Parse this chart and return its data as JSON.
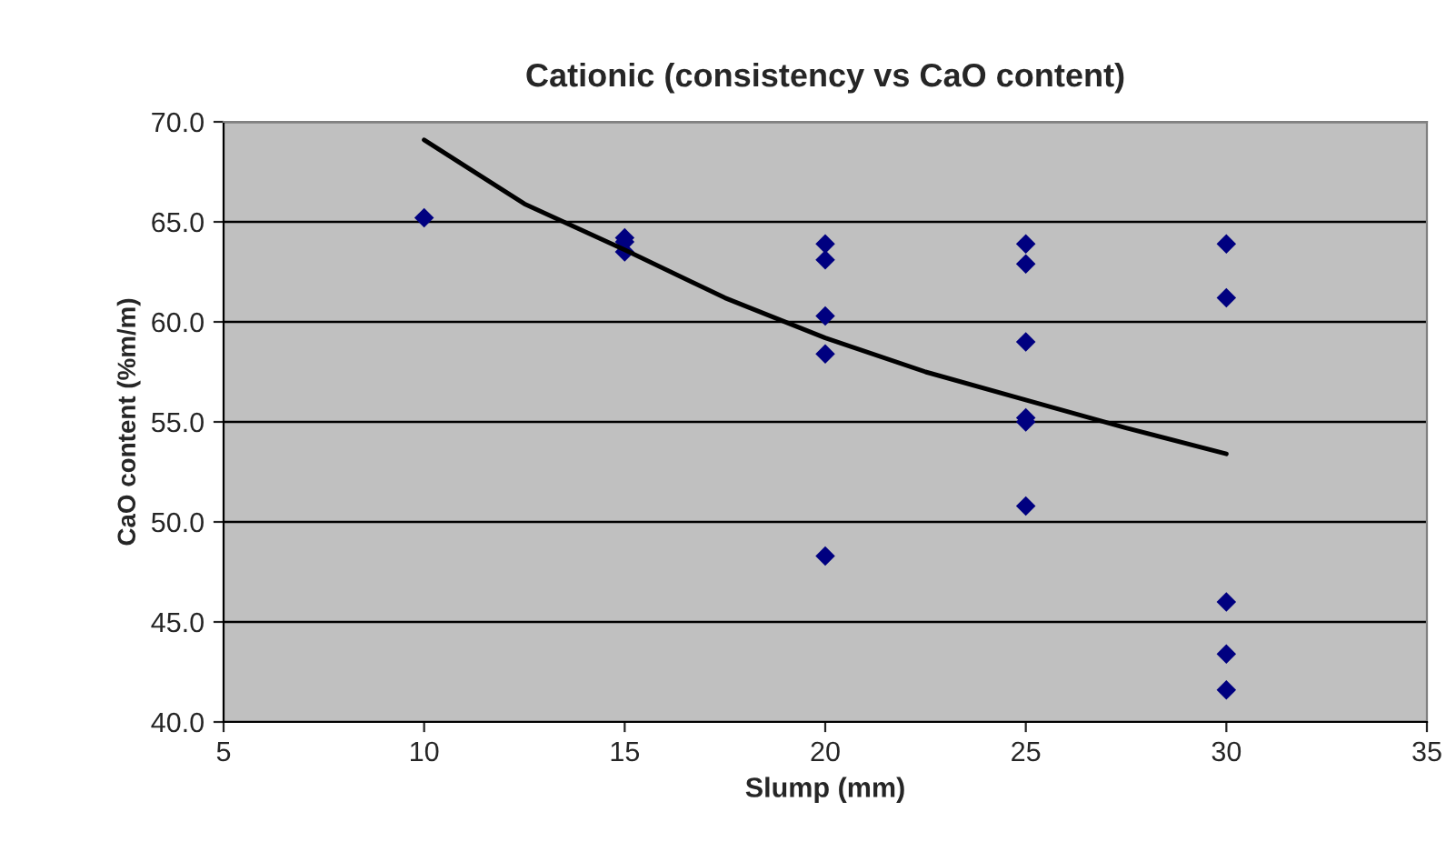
{
  "chart_data": {
    "type": "scatter",
    "title": "Cationic (consistency vs CaO content)",
    "xlabel": "Slump (mm)",
    "ylabel": "CaO content (%m/m)",
    "series": [
      {
        "color": "#000080",
        "marker": "diamond",
        "x": [
          10,
          15,
          15,
          15,
          20,
          20,
          20,
          20,
          20,
          25,
          25,
          25,
          25,
          25,
          25,
          30,
          30,
          30,
          30,
          30
        ],
        "values": [
          65.2,
          64.2,
          64.0,
          63.5,
          63.9,
          63.1,
          60.3,
          58.4,
          48.3,
          63.9,
          62.9,
          59.0,
          55.2,
          55.0,
          50.8,
          63.9,
          61.2,
          46.0,
          43.4,
          41.6
        ]
      },
      {
        "type": "line",
        "color": "#000000",
        "marker": "none",
        "x": [
          10,
          12.5,
          15,
          17.5,
          20,
          22.5,
          25,
          27.5,
          30
        ],
        "values": [
          69.1,
          65.9,
          63.6,
          61.2,
          59.2,
          57.5,
          56.1,
          54.7,
          53.4
        ]
      }
    ],
    "xlim": [
      5,
      35
    ],
    "xticks": [
      5,
      10,
      15,
      20,
      25,
      30,
      35
    ],
    "ylim": [
      40,
      70
    ],
    "yticks": [
      {
        "value": 40,
        "label": "40.0"
      },
      {
        "value": 45,
        "label": "45.0"
      },
      {
        "value": 50,
        "label": "50.0"
      },
      {
        "value": 55,
        "label": "55.0"
      },
      {
        "value": 60,
        "label": "60.0"
      },
      {
        "value": 65,
        "label": "65.0"
      },
      {
        "value": 70,
        "label": "70.0"
      }
    ],
    "grid": "y"
  }
}
